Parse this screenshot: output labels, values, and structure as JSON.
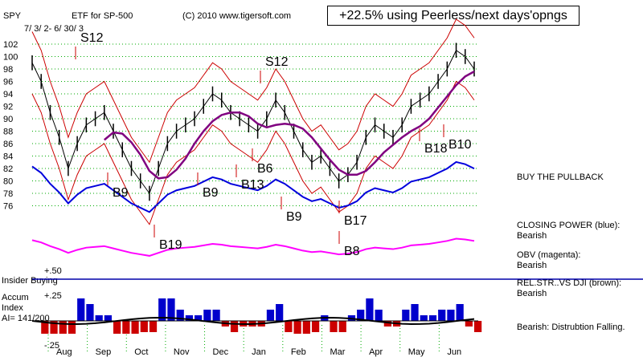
{
  "header": {
    "symbol": "SPY",
    "etf_label": "ETF for SP-500",
    "copyright": "(C) 2010 www.tigersoft.com",
    "banner": "+22.5% using Peerless/next days'opngs",
    "date_range": "7/ 3/ 2- 6/ 30/ 3"
  },
  "side_labels": {
    "buy_pullback": "BUY THE PULLBACK",
    "closing_power": "CLOSING POWER (blue):",
    "closing_power_status": "Bearish",
    "obv": "OBV (magenta):",
    "obv_status": "Bearish",
    "rel_str": "REL.STR..VS DJI (brown):",
    "rel_str_status": "Bearish",
    "distribution": "Bearish: Distrubtion Falling."
  },
  "insider_label": "Insider Buying",
  "accum": {
    "title_line1": "Accum",
    "title_line2": "Index",
    "ai_value": "AI= 141/200",
    "upper_tick": "+.25",
    "lower_tick": "-.25",
    "upper_label": "+.50"
  },
  "colors": {
    "price": "#000000",
    "bands": "#cc0000",
    "ma": "#800080",
    "closing_power": "#0000dd",
    "obv": "#ff00ff",
    "rel_strength": "#8b4513",
    "grid": "#00aa00",
    "accum_pos": "#0000cc",
    "accum_neg": "#cc0000",
    "insider_line": "#0000aa"
  },
  "chart_data": {
    "type": "line",
    "title": "ETF for SP-500",
    "symbol": "SPY",
    "y_ticks": [
      102,
      100,
      98,
      96,
      94,
      92,
      90,
      88,
      86,
      84,
      82,
      80,
      78,
      76
    ],
    "ylim": [
      74,
      103
    ],
    "months": [
      "Aug",
      "Sep",
      "Oct",
      "Nov",
      "Dec",
      "Jan",
      "Feb",
      "Mar",
      "Apr",
      "May",
      "Jun"
    ],
    "series": [
      {
        "name": "",
        "values": [
          99,
          96,
          91,
          87,
          82,
          86,
          89,
          90,
          91,
          88,
          85,
          82,
          80,
          78,
          82,
          86,
          88,
          89,
          90,
          92,
          94,
          93,
          91,
          90,
          89,
          88,
          90,
          93,
          91,
          88,
          85,
          83,
          84,
          82,
          80,
          81,
          83,
          87,
          89,
          88,
          87,
          89,
          92,
          93,
          94,
          96,
          98,
          101,
          100,
          98
        ]
      }
    ],
    "signals": [
      {
        "label": "S12",
        "type": "sell"
      },
      {
        "label": "S12",
        "type": "sell"
      },
      {
        "label": "B9",
        "type": "buy"
      },
      {
        "label": "B9",
        "type": "buy"
      },
      {
        "label": "B13",
        "type": "buy"
      },
      {
        "label": "B6",
        "type": "buy"
      },
      {
        "label": "B9",
        "type": "buy"
      },
      {
        "label": "B19",
        "type": "buy"
      },
      {
        "label": "B17",
        "type": "buy"
      },
      {
        "label": "B8",
        "type": "buy"
      },
      {
        "label": "B18",
        "type": "buy"
      },
      {
        "label": "B10",
        "type": "buy"
      }
    ]
  }
}
